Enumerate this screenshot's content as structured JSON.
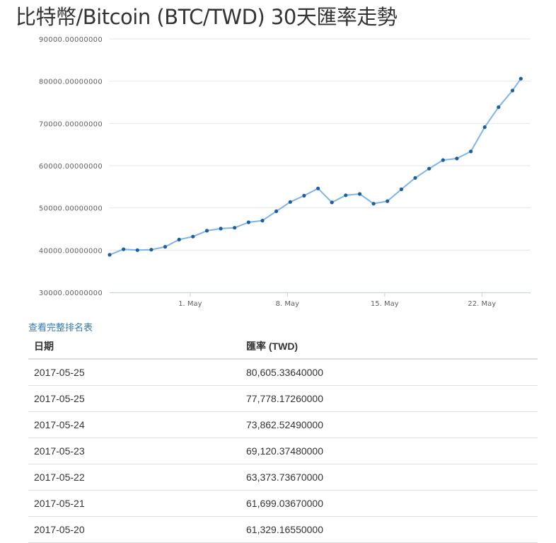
{
  "title": "比特幣/Bitcoin (BTC/TWD) 30天匯率走勢",
  "full_list_link": "查看完整排名表",
  "table": {
    "headers": [
      "日期",
      "匯率 (TWD)"
    ],
    "rows": [
      [
        "2017-05-25",
        "80,605.33640000"
      ],
      [
        "2017-05-25",
        "77,778.17260000"
      ],
      [
        "2017-05-24",
        "73,862.52490000"
      ],
      [
        "2017-05-23",
        "69,120.37480000"
      ],
      [
        "2017-05-22",
        "63,373.73670000"
      ],
      [
        "2017-05-21",
        "61,699.03670000"
      ],
      [
        "2017-05-20",
        "61,329.16550000"
      ]
    ]
  },
  "colors": {
    "line": "#7cb5ec",
    "marker": "#1d5f99",
    "grid": "#e6e6e6",
    "link": "#337ab7"
  },
  "chart_data": {
    "type": "line",
    "title": "",
    "xlabel": "",
    "ylabel": "",
    "ylim": [
      30000,
      90000
    ],
    "y_ticks": [
      30000,
      40000,
      50000,
      60000,
      70000,
      80000,
      90000
    ],
    "y_tick_labels": [
      "30000.00000000",
      "40000.00000000",
      "50000.00000000",
      "60000.00000000",
      "70000.00000000",
      "80000.00000000",
      "90000.00000000"
    ],
    "x_tick_labels": [
      "1. May",
      "8. May",
      "15. May",
      "22. May"
    ],
    "x_tick_days": [
      1,
      8,
      15,
      22
    ],
    "x_range_days": [
      -4.8,
      25.5
    ],
    "grid": true,
    "series": [
      {
        "x_days": [
          -4.8,
          -3.8,
          -2.8,
          -1.8,
          -0.8,
          0.2,
          1.2,
          2.2,
          3.2,
          4.2,
          5.2,
          6.2,
          7.2,
          8.2,
          9.2,
          10.2,
          11.2,
          12.2,
          13.2,
          14.2,
          15.2,
          16.2,
          17.2,
          18.2,
          19.2,
          20.2,
          21.2,
          22.2,
          23.2,
          24.2,
          24.8
        ],
        "values": [
          38900,
          40200,
          40000,
          40100,
          40800,
          42500,
          43200,
          44600,
          45100,
          45300,
          46600,
          47000,
          49200,
          51400,
          52900,
          54600,
          51300,
          53000,
          53300,
          51000,
          51600,
          54400,
          57100,
          59300,
          61329,
          61699,
          63374,
          69120,
          73863,
          77778,
          80605
        ]
      }
    ]
  }
}
